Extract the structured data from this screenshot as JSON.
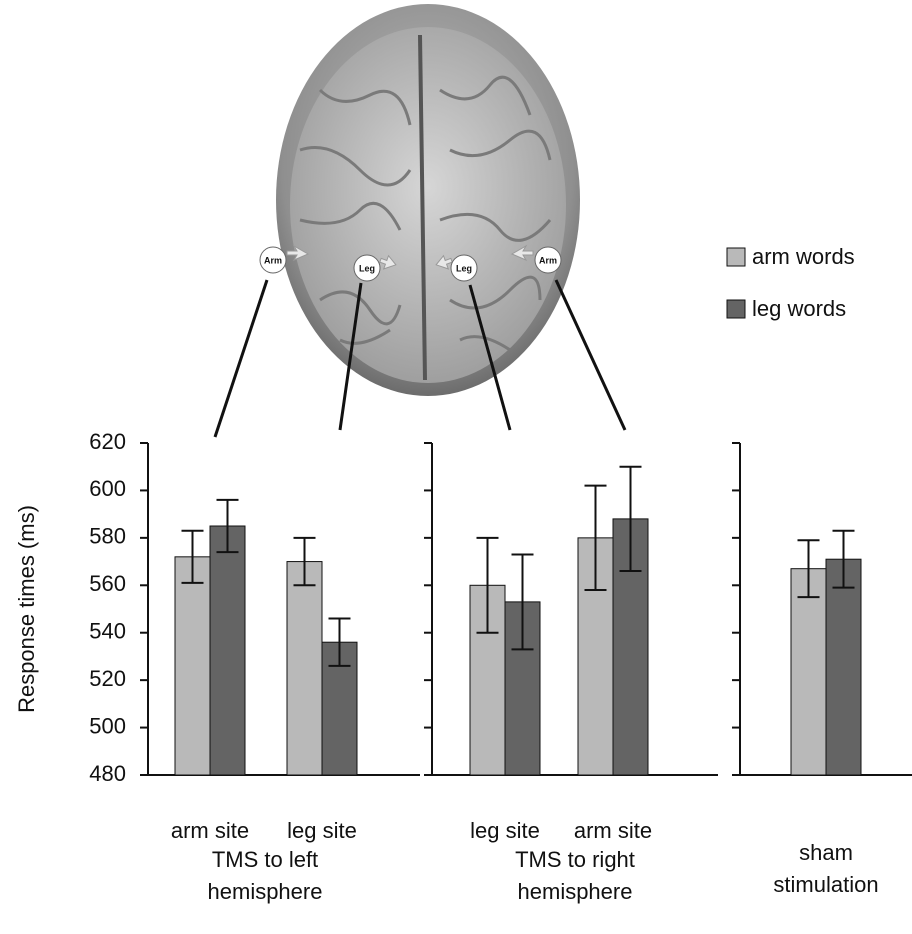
{
  "brain": {
    "labels": [
      "Arm",
      "Leg",
      "Leg",
      "Arm"
    ]
  },
  "chart_data": {
    "type": "bar",
    "ylabel": "Response times (ms)",
    "ylim": [
      480,
      620
    ],
    "yticks": [
      480,
      500,
      520,
      540,
      560,
      580,
      600,
      620
    ],
    "categories": [
      "arm site",
      "leg site",
      "leg site",
      "arm site",
      null
    ],
    "groups": [
      {
        "label": "TMS to left hemisphere",
        "categories": [
          0,
          1
        ]
      },
      {
        "label": "TMS to right hemisphere",
        "categories": [
          2,
          3
        ]
      },
      {
        "label": "sham stimulation",
        "categories": [
          4
        ]
      }
    ],
    "series": [
      {
        "name": "arm words",
        "color": "#b9b9b9",
        "values": [
          572,
          570,
          560,
          580,
          567
        ],
        "errors": [
          11,
          10,
          20,
          22,
          12
        ]
      },
      {
        "name": "leg words",
        "color": "#646464",
        "values": [
          585,
          536,
          553,
          588,
          571
        ],
        "errors": [
          11,
          10,
          20,
          22,
          12
        ]
      }
    ],
    "legend": "right"
  }
}
